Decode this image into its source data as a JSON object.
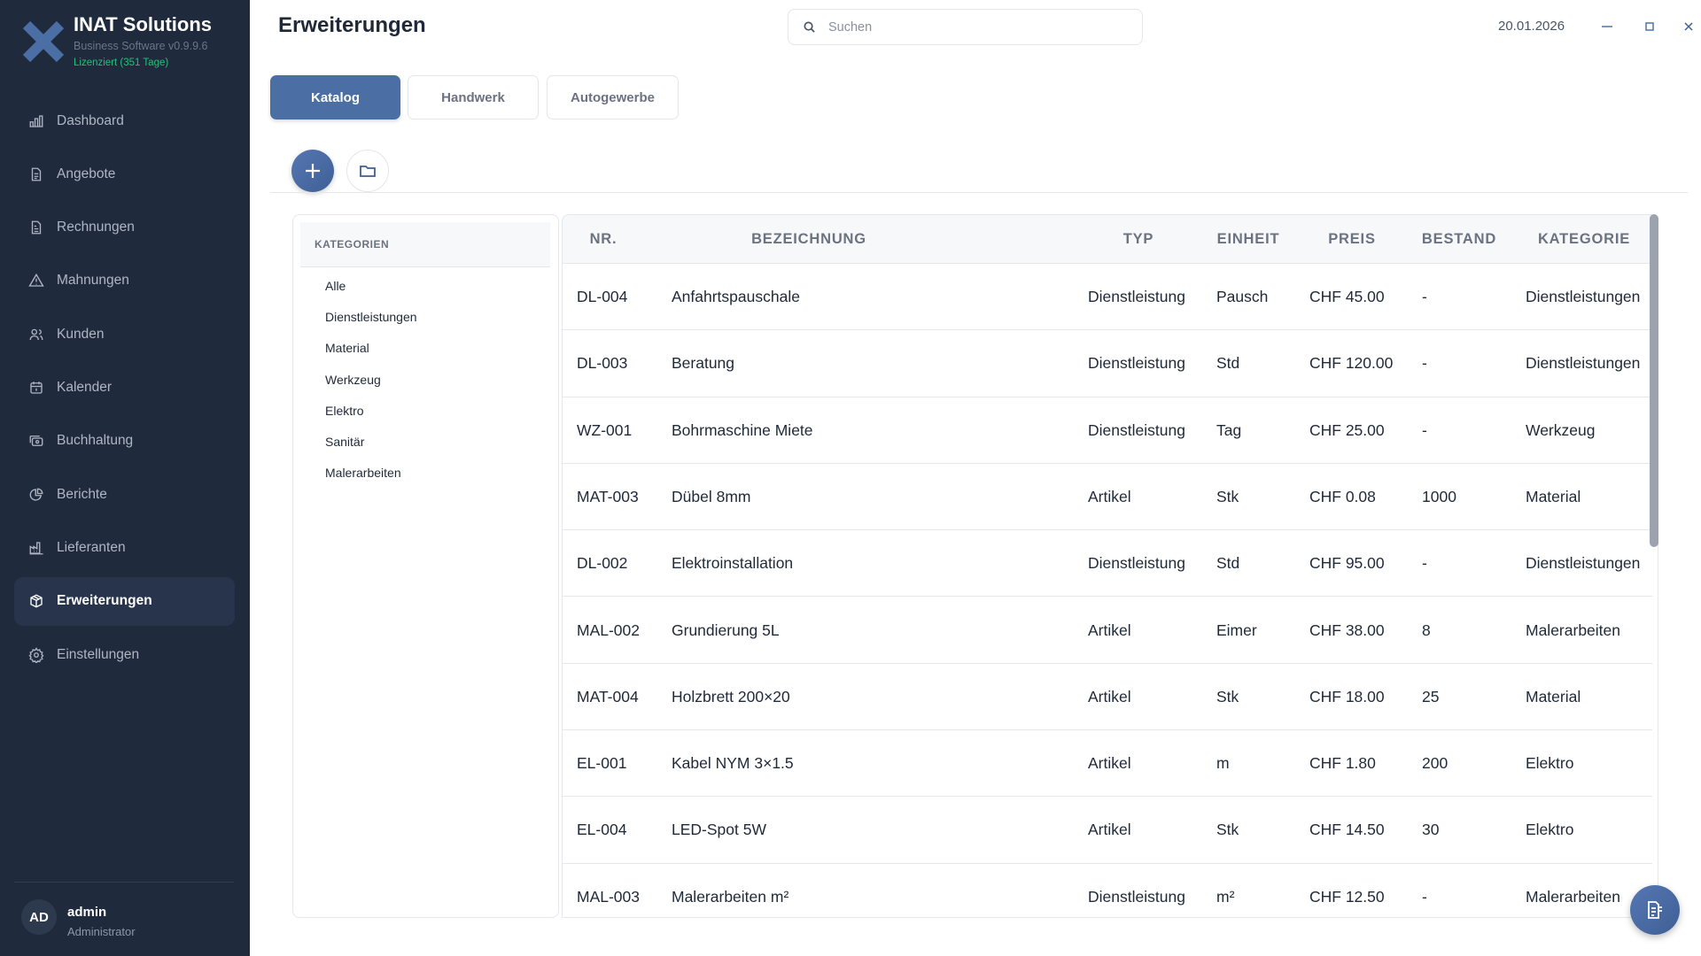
{
  "app": {
    "name": "INAT Solutions",
    "subtitle": "Business Software v0.9.9.6",
    "license": "Lizenziert (351 Tage)"
  },
  "sidebar": {
    "items": [
      {
        "label": "Dashboard",
        "icon": "bar-chart-icon"
      },
      {
        "label": "Angebote",
        "icon": "document-icon"
      },
      {
        "label": "Rechnungen",
        "icon": "invoice-icon"
      },
      {
        "label": "Mahnungen",
        "icon": "warning-icon"
      },
      {
        "label": "Kunden",
        "icon": "users-icon"
      },
      {
        "label": "Kalender",
        "icon": "calendar-icon"
      },
      {
        "label": "Buchhaltung",
        "icon": "cash-icon"
      },
      {
        "label": "Berichte",
        "icon": "pie-chart-icon"
      },
      {
        "label": "Lieferanten",
        "icon": "factory-icon"
      },
      {
        "label": "Erweiterungen",
        "icon": "package-icon",
        "active": true
      },
      {
        "label": "Einstellungen",
        "icon": "gear-icon"
      }
    ]
  },
  "user": {
    "initials": "AD",
    "name": "admin",
    "role": "Administrator"
  },
  "header": {
    "title": "Erweiterungen",
    "search_placeholder": "Suchen",
    "date": "20.01.2026"
  },
  "tabs": [
    {
      "label": "Katalog",
      "active": true
    },
    {
      "label": "Handwerk"
    },
    {
      "label": "Autogewerbe"
    }
  ],
  "categories": {
    "heading": "KATEGORIEN",
    "items": [
      "Alle",
      "Dienstleistungen",
      "Material",
      "Werkzeug",
      "Elektro",
      "Sanitär",
      "Malerarbeiten"
    ]
  },
  "table": {
    "columns": [
      "NR.",
      "BEZEICHNUNG",
      "TYP",
      "EINHEIT",
      "PREIS",
      "BESTAND",
      "KATEGORIE"
    ],
    "rows": [
      [
        "DL-004",
        "Anfahrtspauschale",
        "Dienstleistung",
        "Pausch",
        "CHF 45.00",
        "-",
        "Dienstleistungen"
      ],
      [
        "DL-003",
        "Beratung",
        "Dienstleistung",
        "Std",
        "CHF 120.00",
        "-",
        "Dienstleistungen"
      ],
      [
        "WZ-001",
        "Bohrmaschine Miete",
        "Dienstleistung",
        "Tag",
        "CHF 25.00",
        "-",
        "Werkzeug"
      ],
      [
        "MAT-003",
        "Dübel 8mm",
        "Artikel",
        "Stk",
        "CHF 0.08",
        "1000",
        "Material"
      ],
      [
        "DL-002",
        "Elektroinstallation",
        "Dienstleistung",
        "Std",
        "CHF 95.00",
        "-",
        "Dienstleistungen"
      ],
      [
        "MAL-002",
        "Grundierung 5L",
        "Artikel",
        "Eimer",
        "CHF 38.00",
        "8",
        "Malerarbeiten"
      ],
      [
        "MAT-004",
        "Holzbrett 200×20",
        "Artikel",
        "Stk",
        "CHF 18.00",
        "25",
        "Material"
      ],
      [
        "EL-001",
        "Kabel NYM 3×1.5",
        "Artikel",
        "m",
        "CHF 1.80",
        "200",
        "Elektro"
      ],
      [
        "EL-004",
        "LED-Spot 5W",
        "Artikel",
        "Stk",
        "CHF 14.50",
        "30",
        "Elektro"
      ],
      [
        "MAL-003",
        "Malerarbeiten m²",
        "Dienstleistung",
        "m²",
        "CHF 12.50",
        "-",
        "Malerarbeiten"
      ]
    ]
  },
  "colors": {
    "sidebar": "#1f2a3c",
    "accent": "#4b6fa5",
    "license": "#22c07a"
  }
}
